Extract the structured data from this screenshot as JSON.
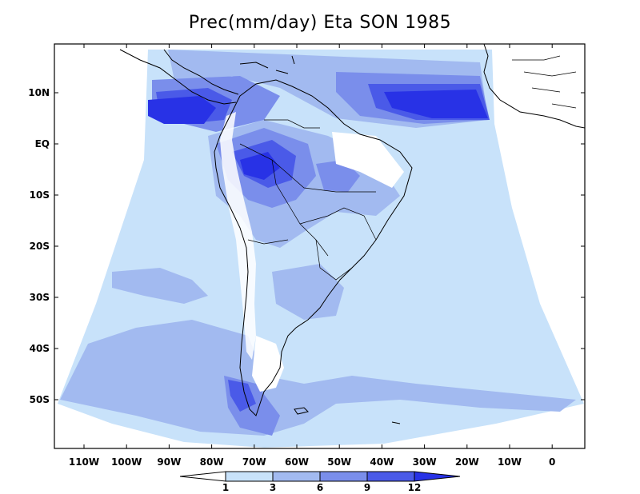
{
  "title": "Prec(mm/day) Eta SON 1985",
  "lat_ticks": [
    "10N",
    "EQ",
    "10S",
    "20S",
    "30S",
    "40S",
    "50S"
  ],
  "lon_ticks": [
    "110W",
    "100W",
    "90W",
    "80W",
    "70W",
    "60W",
    "50W",
    "40W",
    "30W",
    "20W",
    "10W",
    "0"
  ],
  "colorbar": {
    "labels": [
      "1",
      "3",
      "6",
      "9",
      "12"
    ],
    "colors": [
      "#ffffff",
      "#c8e2fa",
      "#a2baf0",
      "#7a8eeb",
      "#4a5ae8",
      "#2832e6"
    ]
  },
  "colors": {
    "level1": "#c8e2fa",
    "level2": "#a2baf0",
    "level3": "#7a8eeb",
    "level4": "#4a5ae8",
    "level5": "#2832e6",
    "coast": "#000000"
  }
}
